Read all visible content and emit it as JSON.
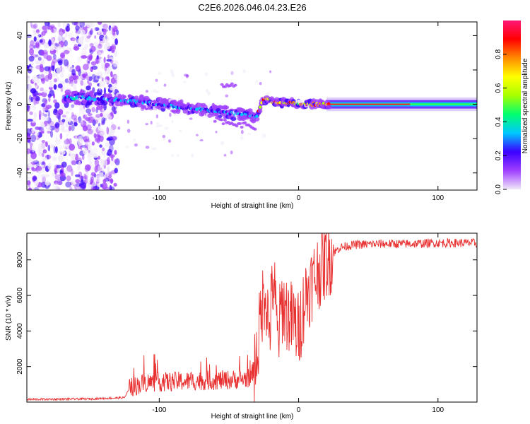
{
  "title": "C2E6.2026.046.04.23.E26",
  "chart_data": [
    {
      "type": "heatmap",
      "name": "spectrogram",
      "xlabel": "Height of straight line (km)",
      "ylabel": "Frequency (Hz)",
      "xlim": [
        -195,
        128
      ],
      "ylim": [
        -50,
        48
      ],
      "x_ticks": [
        -100,
        0,
        100
      ],
      "x_tick_labels": [
        "-100",
        "0",
        "100"
      ],
      "y_ticks": [
        -40,
        -20,
        0,
        20,
        40
      ],
      "y_tick_labels": [
        "-40",
        "-20",
        "0",
        "20",
        "40"
      ],
      "colorbar": {
        "label": "Normalized spectral amplitude",
        "range": [
          0,
          1
        ],
        "ticks": [
          0,
          0.2,
          0.4,
          0.6,
          0.8
        ],
        "tick_labels": [
          "0.0",
          "0.2",
          "0.4",
          "0.6",
          "0.8"
        ],
        "stops": [
          "#f0e8f8",
          "#a040ff",
          "#3a00ff",
          "#00c8ff",
          "#00ff70",
          "#a8ff00",
          "#ffff00",
          "#ff8a00",
          "#ff0000",
          "#ff1878"
        ]
      },
      "ridge": [
        {
          "x": -165,
          "f": 4
        },
        {
          "x": -140,
          "f": 3
        },
        {
          "x": -120,
          "f": 2
        },
        {
          "x": -100,
          "f": 0
        },
        {
          "x": -80,
          "f": -2
        },
        {
          "x": -60,
          "f": -4
        },
        {
          "x": -40,
          "f": -6
        },
        {
          "x": -30,
          "f": -7
        },
        {
          "x": -25,
          "f": 3
        },
        {
          "x": -15,
          "f": 1
        },
        {
          "x": 0,
          "f": 0.5
        },
        {
          "x": 20,
          "f": 0
        },
        {
          "x": 60,
          "f": 0
        },
        {
          "x": 128,
          "f": 0
        }
      ]
    },
    {
      "type": "line",
      "name": "snr",
      "xlabel": "Height of straight line (km)",
      "ylabel": "SNR (10 * v/v)",
      "xlim": [
        -195,
        128
      ],
      "ylim": [
        0,
        9500
      ],
      "x_ticks": [
        -100,
        0,
        100
      ],
      "x_tick_labels": [
        "-100",
        "0",
        "100"
      ],
      "y_ticks": [
        2000,
        4000,
        6000,
        8000
      ],
      "y_tick_labels": [
        "2000",
        "4000",
        "6000",
        "8000"
      ],
      "color": "#e83030",
      "series": [
        {
          "name": "SNR",
          "x": [
            -195,
            -150,
            -125,
            -121,
            -110,
            -90,
            -70,
            -50,
            -40,
            -34,
            -30,
            -27,
            -24,
            -21,
            -18,
            -15,
            -12,
            -8,
            -4,
            0,
            5,
            10,
            15,
            20,
            25,
            30,
            40,
            60,
            80,
            100,
            128
          ],
          "y": [
            150,
            180,
            250,
            800,
            1100,
            1150,
            1200,
            1250,
            1300,
            1400,
            2500,
            5000,
            6500,
            4000,
            7000,
            3500,
            5500,
            5000,
            4500,
            4000,
            6000,
            6800,
            7500,
            8000,
            8400,
            8700,
            8850,
            8900,
            8900,
            8950,
            8950
          ]
        }
      ]
    }
  ]
}
